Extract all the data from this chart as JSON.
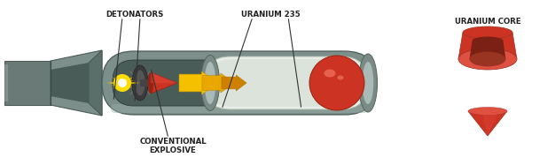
{
  "labels": {
    "detonators": "DETONATORS",
    "uranium235": "URANIUM 235",
    "conventional_explosive": "CONVENTIONAL\nEXPLOSIVE",
    "uranium_core": "URANIUM CORE"
  },
  "colors": {
    "background": "#ffffff",
    "bomb_outer": "#7d8f8a",
    "bomb_outer_light": "#9aada8",
    "bomb_outer_dark": "#5a6e6a",
    "bomb_inner": "#4a5c58",
    "bomb_inner_light": "#6a7e7a",
    "tail_block": "#6a7a77",
    "tail_fin": "#8a9c98",
    "cylinder_tube": "#e8ede8",
    "cylinder_tube_shadow": "#c8d4c8",
    "cylinder_rim": "#7a8a87",
    "cylinder_rim_light": "#aabab7",
    "uranium_red": "#cc3322",
    "uranium_red_light": "#e85040",
    "uranium_red_dark": "#992211",
    "uranium_highlight": "#ff8877",
    "arrow_yellow1": "#f5c000",
    "arrow_yellow2": "#e8a800",
    "arrow_orange": "#d08000",
    "exp_yellow": "#ffdd00",
    "exp_orange": "#ff9900",
    "exp_white": "#ffffff",
    "det_dark": "#3a3a3a",
    "det_mid": "#555555",
    "det_light": "#888888",
    "text_color": "#222222",
    "line_color": "#333333",
    "core_red": "#cc3322",
    "core_red_light": "#e05040",
    "core_red_dark": "#993322",
    "core_shadow": "#7a2015"
  },
  "fig_width": 6.26,
  "fig_height": 1.87,
  "dpi": 100
}
